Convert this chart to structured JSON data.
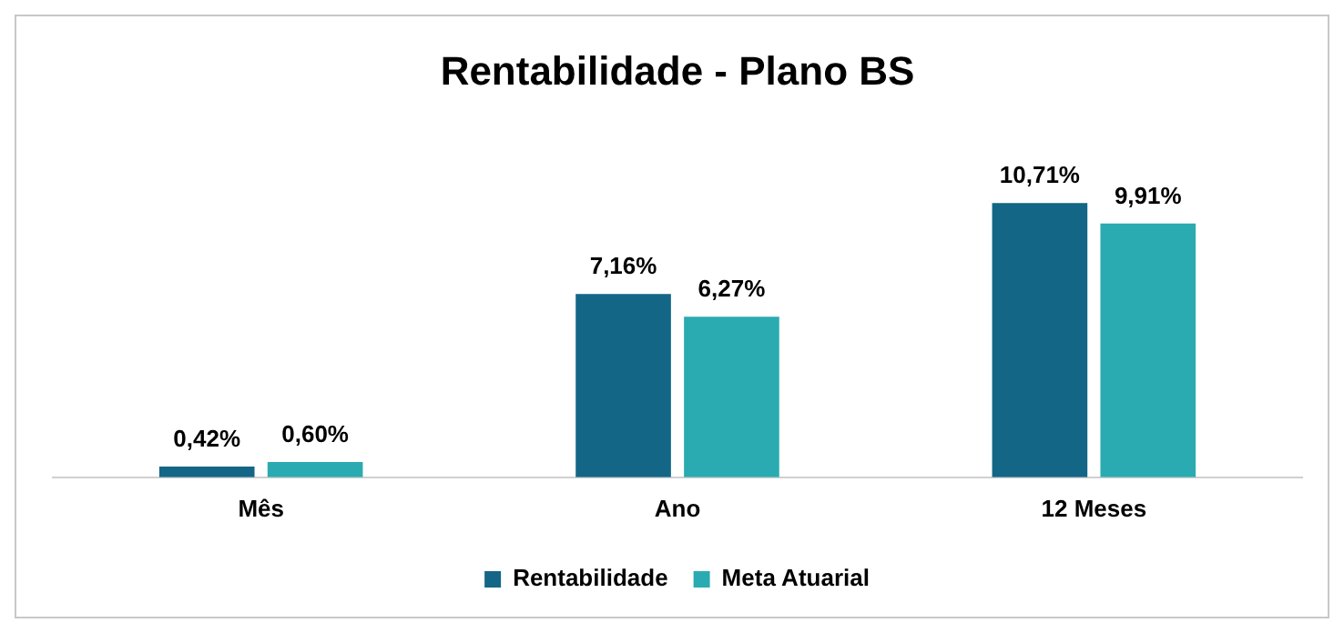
{
  "chart_data": {
    "type": "bar",
    "title": "Rentabilidade - Plano BS",
    "categories": [
      "Mês",
      "Ano",
      "12 Meses"
    ],
    "series": [
      {
        "name": "Rentabilidade",
        "color": "#136686",
        "values": [
          0.42,
          7.16,
          10.71
        ],
        "value_labels": [
          "0,42%",
          "7,16%",
          "10,71%"
        ]
      },
      {
        "name": "Meta Atuarial",
        "color": "#2aabb1",
        "values": [
          0.6,
          6.27,
          9.91
        ],
        "value_labels": [
          "0,60%",
          "6,27%",
          "9,91%"
        ]
      }
    ],
    "tick_labels": "x",
    "grid": false,
    "legend": "bottom"
  }
}
